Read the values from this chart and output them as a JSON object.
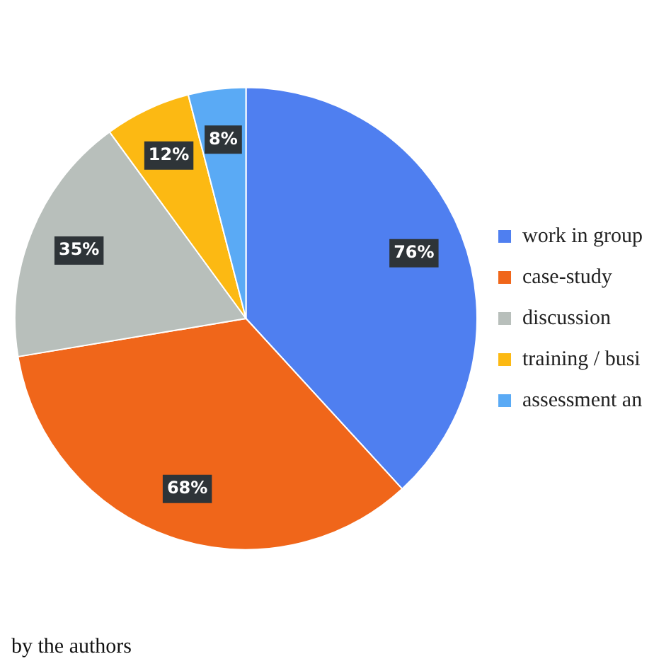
{
  "chart_data": {
    "type": "pie",
    "categories": [
      "work in group",
      "case-study",
      "discussion",
      "training / busi",
      "assessment an"
    ],
    "values": [
      76,
      68,
      35,
      12,
      8
    ],
    "colors": [
      "#4f7ff0",
      "#f0661a",
      "#b8bfbb",
      "#fcb913",
      "#5aaaf5"
    ],
    "value_labels": [
      "76%",
      "68%",
      "35%",
      "12%",
      "8%"
    ],
    "legend": "right",
    "annotations": [
      "by the authors"
    ]
  }
}
